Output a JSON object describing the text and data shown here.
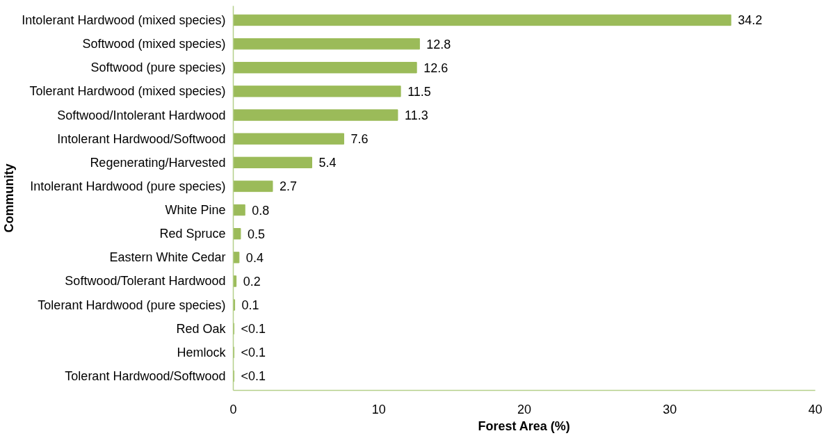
{
  "chart_data": {
    "type": "bar",
    "orientation": "horizontal",
    "xlabel": "Forest Area (%)",
    "ylabel": "Community",
    "categories": [
      "Intolerant Hardwood (mixed species)",
      "Softwood (mixed species)",
      "Softwood (pure species)",
      "Tolerant Hardwood (mixed species)",
      "Softwood/Intolerant Hardwood",
      "Intolerant Hardwood/Softwood",
      "Regenerating/Harvested",
      "Intolerant Hardwood (pure species)",
      "White Pine",
      "Red Spruce",
      "Eastern White Cedar",
      "Softwood/Tolerant Hardwood",
      "Tolerant Hardwood (pure species)",
      "Red Oak",
      "Hemlock",
      "Tolerant Hardwood/Softwood"
    ],
    "values": [
      34.2,
      12.8,
      12.6,
      11.5,
      11.3,
      7.6,
      5.4,
      2.7,
      0.8,
      0.5,
      0.4,
      0.2,
      0.1,
      0.05,
      0.05,
      0.05
    ],
    "value_labels": [
      "34.2",
      "12.8",
      "12.6",
      "11.5",
      "11.3",
      "7.6",
      "5.4",
      "2.7",
      "0.8",
      "0.5",
      "0.4",
      "0.2",
      "0.1",
      "<0.1",
      "<0.1",
      "<0.1"
    ],
    "color": "#9bbb59",
    "xlim": [
      0,
      40
    ],
    "xticks": [
      0,
      10,
      20,
      30,
      40
    ],
    "grid": false
  }
}
